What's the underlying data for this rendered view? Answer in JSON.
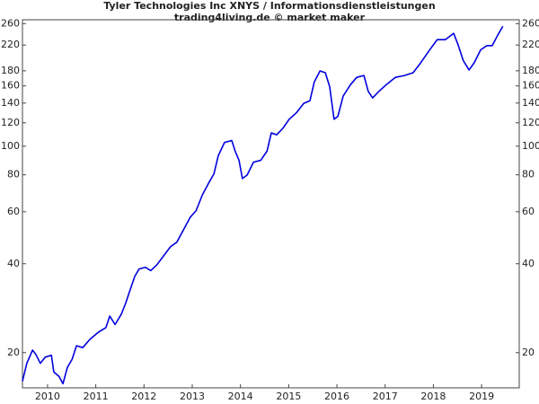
{
  "chart_data": {
    "type": "line",
    "title": "Tyler Technologies Inc XNYS / Informationsdienstleistungen",
    "subtitle": "trading4living.de © market maker",
    "log_y": true,
    "grid": false,
    "xlim": [
      2009.98,
      2020.28
    ],
    "ylim": [
      15.2,
      268
    ],
    "yticks": [
      20,
      40,
      60,
      80,
      100,
      120,
      140,
      160,
      180,
      220,
      260
    ],
    "xticks": [
      {
        "value": 2010.5,
        "label": "2010"
      },
      {
        "value": 2011.5,
        "label": "2011"
      },
      {
        "value": 2012.5,
        "label": "2012"
      },
      {
        "value": 2013.5,
        "label": "2013"
      },
      {
        "value": 2014.5,
        "label": "2014"
      },
      {
        "value": 2015.5,
        "label": "2015"
      },
      {
        "value": 2016.5,
        "label": "2016"
      },
      {
        "value": 2017.5,
        "label": "2017"
      },
      {
        "value": 2018.5,
        "label": "2018"
      },
      {
        "value": 2019.5,
        "label": "2019"
      }
    ],
    "x": [
      2009.98,
      2010.07,
      2010.19,
      2010.26,
      2010.35,
      2010.45,
      2010.58,
      2010.63,
      2010.74,
      2010.82,
      2010.91,
      2011.01,
      2011.1,
      2011.23,
      2011.38,
      2011.56,
      2011.71,
      2011.79,
      2011.9,
      2012.03,
      2012.12,
      2012.22,
      2012.31,
      2012.4,
      2012.53,
      2012.64,
      2012.77,
      2012.91,
      2013.05,
      2013.18,
      2013.33,
      2013.46,
      2013.58,
      2013.71,
      2013.84,
      2013.95,
      2014.04,
      2014.17,
      2014.32,
      2014.39,
      2014.47,
      2014.54,
      2014.64,
      2014.77,
      2014.92,
      2015.05,
      2015.14,
      2015.25,
      2015.38,
      2015.51,
      2015.66,
      2015.81,
      2015.94,
      2016.03,
      2016.15,
      2016.26,
      2016.35,
      2016.44,
      2016.52,
      2016.63,
      2016.78,
      2016.91,
      2017.06,
      2017.15,
      2017.24,
      2017.37,
      2017.52,
      2017.71,
      2017.9,
      2018.08,
      2018.23,
      2018.42,
      2018.58,
      2018.75,
      2018.92,
      2019.01,
      2019.12,
      2019.24,
      2019.35,
      2019.48,
      2019.61,
      2019.72,
      2019.83,
      2019.94
    ],
    "series": [
      {
        "name": "Tyler Technologies Inc",
        "color": "#0000dd",
        "values": [
          16.0,
          18.4,
          20.4,
          19.7,
          18.4,
          19.3,
          19.6,
          17.2,
          16.6,
          15.7,
          17.8,
          19.0,
          21.1,
          20.8,
          22.2,
          23.5,
          24.3,
          26.6,
          24.9,
          27.0,
          29.4,
          32.9,
          36.3,
          38.4,
          38.9,
          37.9,
          39.7,
          42.6,
          45.7,
          47.3,
          52.5,
          57.5,
          60.5,
          68.4,
          75.0,
          80.6,
          92.9,
          103.0,
          104.5,
          96.2,
          89.6,
          77.7,
          79.9,
          88.3,
          89.6,
          96.2,
          110.9,
          109.3,
          115.0,
          123.4,
          129.8,
          139.5,
          142.6,
          164.9,
          179.9,
          177.3,
          159.0,
          123.4,
          126.2,
          147.9,
          161.4,
          171.0,
          173.5,
          153.3,
          145.7,
          153.3,
          161.4,
          171.0,
          173.5,
          177.3,
          190.9,
          211.5,
          229.5,
          229.5,
          241,
          221,
          194.9,
          181.2,
          192.0,
          212,
          219,
          219,
          237,
          254.7
        ]
      }
    ]
  }
}
